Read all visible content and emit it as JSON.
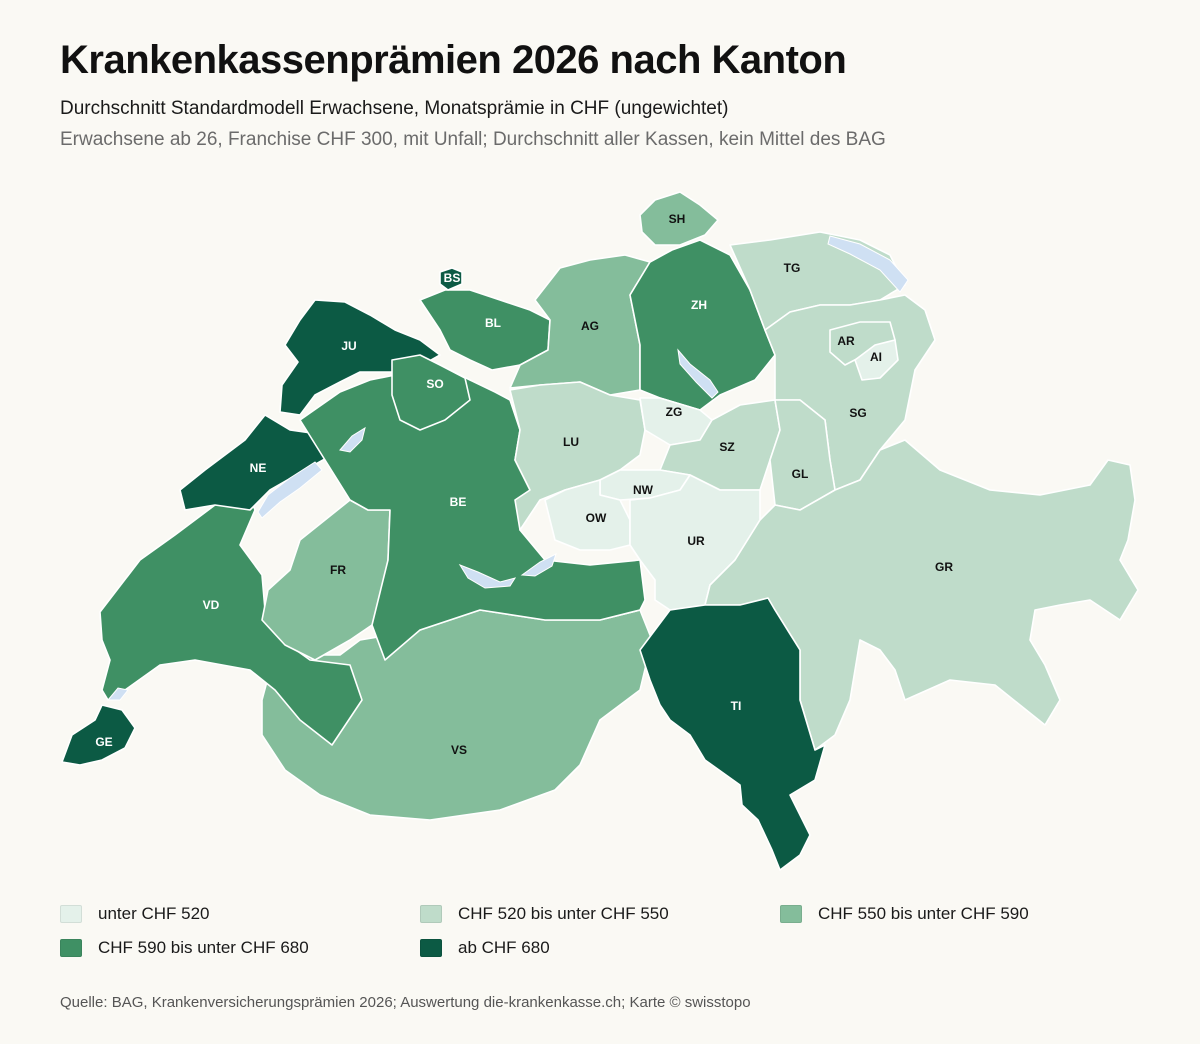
{
  "header": {
    "title": "Krankenkassenprämien 2026 nach Kanton",
    "subtitle": "Durchschnitt Standardmodell Erwachsene, Monatsprämie in CHF (ungewichtet)",
    "note": "Erwachsene ab 26, Franchise CHF 300, mit Unfall; Durchschnitt aller Kassen, kein Mittel des BAG"
  },
  "colors": {
    "class_1": "#e4f1ea",
    "class_2": "#bfdcca",
    "class_3": "#84bd9b",
    "class_4": "#3f9064",
    "class_5": "#0c5a44",
    "lake": "#cfe0f3",
    "label_dark": "#111111",
    "label_light": "#ffffff"
  },
  "legend": [
    {
      "label": "unter CHF 520",
      "class": "class_1"
    },
    {
      "label": "CHF 520 bis unter CHF 550",
      "class": "class_2"
    },
    {
      "label": "CHF 550 bis unter CHF 590",
      "class": "class_3"
    },
    {
      "label": "CHF 590 bis unter CHF 680",
      "class": "class_4"
    },
    {
      "label": "ab CHF 680",
      "class": "class_5"
    }
  ],
  "cantons": [
    {
      "code": "SH",
      "class": "class_3"
    },
    {
      "code": "BS",
      "class": "class_5"
    },
    {
      "code": "TG",
      "class": "class_2"
    },
    {
      "code": "JU",
      "class": "class_5"
    },
    {
      "code": "BL",
      "class": "class_4"
    },
    {
      "code": "AG",
      "class": "class_3"
    },
    {
      "code": "ZH",
      "class": "class_4"
    },
    {
      "code": "AR",
      "class": "class_2"
    },
    {
      "code": "AI",
      "class": "class_1"
    },
    {
      "code": "SO",
      "class": "class_4"
    },
    {
      "code": "SG",
      "class": "class_2"
    },
    {
      "code": "ZG",
      "class": "class_1"
    },
    {
      "code": "LU",
      "class": "class_2"
    },
    {
      "code": "NE",
      "class": "class_5"
    },
    {
      "code": "SZ",
      "class": "class_2"
    },
    {
      "code": "NW",
      "class": "class_1"
    },
    {
      "code": "GL",
      "class": "class_2"
    },
    {
      "code": "BE",
      "class": "class_4"
    },
    {
      "code": "OW",
      "class": "class_1"
    },
    {
      "code": "UR",
      "class": "class_1"
    },
    {
      "code": "FR",
      "class": "class_3"
    },
    {
      "code": "GR",
      "class": "class_2"
    },
    {
      "code": "VD",
      "class": "class_4"
    },
    {
      "code": "TI",
      "class": "class_5"
    },
    {
      "code": "GE",
      "class": "class_5"
    },
    {
      "code": "VS",
      "class": "class_3"
    }
  ],
  "source": "Quelle: BAG, Krankenversicherungsprämien 2026; Auswertung die-krankenkasse.ch; Karte © swisstopo"
}
